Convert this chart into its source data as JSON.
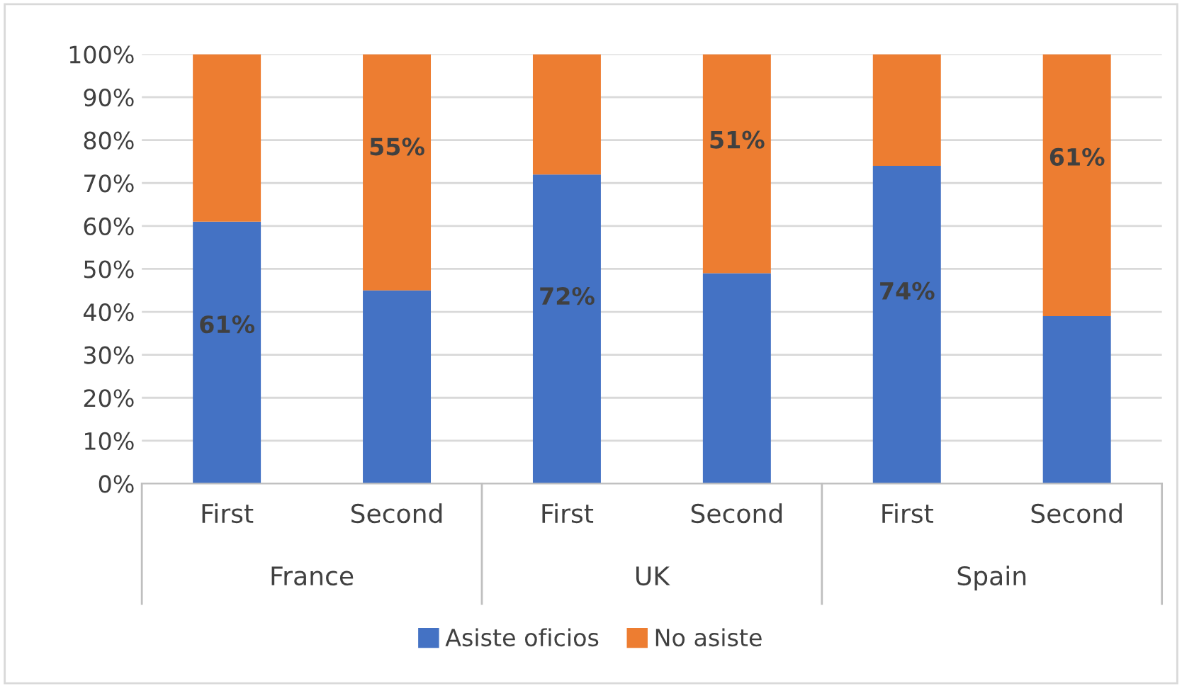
{
  "chart_data": {
    "type": "bar",
    "stacked": true,
    "categories": [
      "First",
      "Second",
      "First",
      "Second",
      "First",
      "Second"
    ],
    "annotations": [
      "France",
      "UK",
      "Spain"
    ],
    "series": [
      {
        "name": "Asiste oficios",
        "color": "#4472c4",
        "values": [
          61,
          45,
          72,
          49,
          74,
          39
        ],
        "value_labels": [
          "61%",
          null,
          "72%",
          null,
          "74%",
          null
        ]
      },
      {
        "name": "No asiste",
        "color": "#ed7d31",
        "values": [
          39,
          55,
          28,
          51,
          26,
          61
        ],
        "value_labels": [
          null,
          "55%",
          null,
          "51%",
          null,
          "61%"
        ]
      }
    ],
    "ylim": [
      0,
      100
    ],
    "yticks": [
      {
        "value": 0,
        "label": "0%"
      },
      {
        "value": 10,
        "label": "10%"
      },
      {
        "value": 20,
        "label": "20%"
      },
      {
        "value": 30,
        "label": "30%"
      },
      {
        "value": 40,
        "label": "40%"
      },
      {
        "value": 50,
        "label": "50%"
      },
      {
        "value": 60,
        "label": "60%"
      },
      {
        "value": 70,
        "label": "70%"
      },
      {
        "value": 80,
        "label": "80%"
      },
      {
        "value": 90,
        "label": "90%"
      },
      {
        "value": 100,
        "label": "100%"
      }
    ],
    "grid": "y",
    "legend": "bottom"
  }
}
